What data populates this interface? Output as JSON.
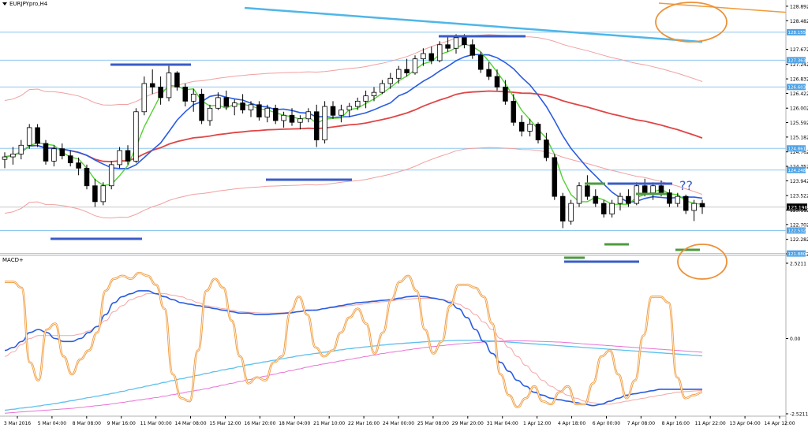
{
  "window": {
    "symbol_title": "EURJPYpro,H4"
  },
  "macd": {
    "label": "MACD+"
  },
  "annotation": {
    "question_text": "??"
  },
  "colors": {
    "background": "#ffffff",
    "up_candle": "#ffffff",
    "down_candle": "#000000",
    "ma_fast": "#55d035",
    "ma_mid": "#2a5ce0",
    "ma_slow": "#e04545",
    "envelope": "#f0a0a0",
    "channel_line": "#4fb6e8",
    "orange_line": "#f09a3a",
    "hline": "#8fc8ee",
    "marker_blue": "#3a5cc9",
    "marker_green": "#4f9a3f",
    "circle": "#ec9137",
    "macd_orange": "#f09a3a",
    "macd_blue": "#2a5ce0",
    "macd_red": "#f3a6a6",
    "macd_cyan": "#5ec0ee",
    "macd_magenta": "#e872d6",
    "price_label_bg": "#4fa3e6",
    "current_price_bg": "#000000"
  },
  "chart_data": [
    {
      "type": "candlestick",
      "title": "EURJPYpro,H4",
      "ylim": [
        121.872,
        128.89
      ],
      "y_ticks": [
        "128.892",
        "128.482",
        "127.672",
        "127.242",
        "126.832",
        "126.422",
        "126.002",
        "125.592",
        "125.182",
        "124.762",
        "124.352",
        "123.942",
        "123.522",
        "123.112",
        "122.702",
        "122.282",
        "121.872"
      ],
      "x_ticks": [
        "3 Mar 2016",
        "5 Mar 04:00",
        "8 Mar 08:00",
        "9 Mar 16:00",
        "11 Mar 00:00",
        "14 Mar 08:00",
        "15 Mar 12:00",
        "16 Mar 20:00",
        "18 Mar 04:00",
        "21 Mar 10:00",
        "22 Mar 16:00",
        "24 Mar 00:00",
        "25 Mar 08:00",
        "29 Mar 20:00",
        "31 Mar 04:00",
        "1 Apr 12:00",
        "4 Apr 18:00",
        "6 Apr 00:00",
        "7 Apr 08:00",
        "8 Apr 16:00",
        "11 Apr 22:00",
        "13 Apr 04:00",
        "14 Apr 12:00"
      ],
      "current_price": "123.196",
      "horizontal_level_labels": [
        "128.155",
        "127.363",
        "126.603",
        "124.861",
        "124.248",
        "122.532",
        "121.880"
      ],
      "horizontal_levels": [
        128.155,
        127.363,
        126.603,
        124.861,
        124.248,
        122.532,
        121.88
      ],
      "candles": [
        [
          124.55,
          124.75,
          124.3,
          124.62
        ],
        [
          124.62,
          124.9,
          124.4,
          124.7
        ],
        [
          124.7,
          125.1,
          124.55,
          124.95
        ],
        [
          124.95,
          125.55,
          124.85,
          125.45
        ],
        [
          125.45,
          125.55,
          124.9,
          125.0
        ],
        [
          125.0,
          125.1,
          124.4,
          124.5
        ],
        [
          124.5,
          124.95,
          124.35,
          124.85
        ],
        [
          124.85,
          125.0,
          124.55,
          124.65
        ],
        [
          124.65,
          124.8,
          124.35,
          124.45
        ],
        [
          124.45,
          124.6,
          124.1,
          124.3
        ],
        [
          124.3,
          124.4,
          123.7,
          123.8
        ],
        [
          123.8,
          124.0,
          123.2,
          123.35
        ],
        [
          123.35,
          123.9,
          123.25,
          123.8
        ],
        [
          123.8,
          124.5,
          123.7,
          124.4
        ],
        [
          124.4,
          124.9,
          124.3,
          124.8
        ],
        [
          124.8,
          124.95,
          124.4,
          124.5
        ],
        [
          124.5,
          126.0,
          124.45,
          125.9
        ],
        [
          125.9,
          126.9,
          125.8,
          126.7
        ],
        [
          126.7,
          127.1,
          126.4,
          126.6
        ],
        [
          126.6,
          126.9,
          126.1,
          126.3
        ],
        [
          126.3,
          127.2,
          126.2,
          127.0
        ],
        [
          127.0,
          127.05,
          126.5,
          126.6
        ],
        [
          126.6,
          126.7,
          126.05,
          126.2
        ],
        [
          126.2,
          126.55,
          125.9,
          126.4
        ],
        [
          126.4,
          126.55,
          125.55,
          125.65
        ],
        [
          125.65,
          126.1,
          125.5,
          126.0
        ],
        [
          126.0,
          126.45,
          125.95,
          126.3
        ],
        [
          126.3,
          126.5,
          125.95,
          126.05
        ],
        [
          126.05,
          126.25,
          125.8,
          126.15
        ],
        [
          126.15,
          126.4,
          125.85,
          125.95
        ],
        [
          125.95,
          126.2,
          125.75,
          126.1
        ],
        [
          126.1,
          126.2,
          125.65,
          125.75
        ],
        [
          125.75,
          126.1,
          125.6,
          126.0
        ],
        [
          126.0,
          126.1,
          125.55,
          125.65
        ],
        [
          125.65,
          125.9,
          125.45,
          125.8
        ],
        [
          125.8,
          126.0,
          125.5,
          125.6
        ],
        [
          125.6,
          125.8,
          125.4,
          125.7
        ],
        [
          125.7,
          126.0,
          125.6,
          125.9
        ],
        [
          125.9,
          126.1,
          124.9,
          125.1
        ],
        [
          125.1,
          126.2,
          125.0,
          126.05
        ],
        [
          126.05,
          126.2,
          125.7,
          125.8
        ],
        [
          125.8,
          126.1,
          125.6,
          125.95
        ],
        [
          125.95,
          126.15,
          125.75,
          126.05
        ],
        [
          126.05,
          126.3,
          125.95,
          126.2
        ],
        [
          126.2,
          126.5,
          126.0,
          126.35
        ],
        [
          126.35,
          126.6,
          126.2,
          126.45
        ],
        [
          126.45,
          126.8,
          126.4,
          126.7
        ],
        [
          126.7,
          127.0,
          126.55,
          126.85
        ],
        [
          126.85,
          127.2,
          126.7,
          127.1
        ],
        [
          127.1,
          127.4,
          126.9,
          127.0
        ],
        [
          127.0,
          127.5,
          126.95,
          127.4
        ],
        [
          127.4,
          127.7,
          127.2,
          127.55
        ],
        [
          127.55,
          127.75,
          127.25,
          127.35
        ],
        [
          127.35,
          127.9,
          127.3,
          127.8
        ],
        [
          127.8,
          128.05,
          127.6,
          127.7
        ],
        [
          127.7,
          128.1,
          127.55,
          128.0
        ],
        [
          128.0,
          128.1,
          127.7,
          127.8
        ],
        [
          127.8,
          127.95,
          127.4,
          127.5
        ],
        [
          127.5,
          127.6,
          127.0,
          127.1
        ],
        [
          127.1,
          127.3,
          126.8,
          126.9
        ],
        [
          126.9,
          127.1,
          126.5,
          126.6
        ],
        [
          126.6,
          126.8,
          126.1,
          126.2
        ],
        [
          126.2,
          126.4,
          125.5,
          125.6
        ],
        [
          125.6,
          125.8,
          125.2,
          125.35
        ],
        [
          125.35,
          125.7,
          125.2,
          125.55
        ],
        [
          125.55,
          125.6,
          125.0,
          125.1
        ],
        [
          125.1,
          125.3,
          124.5,
          124.6
        ],
        [
          124.6,
          124.7,
          123.4,
          123.5
        ],
        [
          123.5,
          123.6,
          122.6,
          122.8
        ],
        [
          122.8,
          123.4,
          122.7,
          123.3
        ],
        [
          123.3,
          123.9,
          123.2,
          123.8
        ],
        [
          123.8,
          124.1,
          123.4,
          123.5
        ],
        [
          123.5,
          123.7,
          123.2,
          123.3
        ],
        [
          123.3,
          123.4,
          122.9,
          123.0
        ],
        [
          123.0,
          123.4,
          122.9,
          123.3
        ],
        [
          123.3,
          123.6,
          123.1,
          123.5
        ],
        [
          123.5,
          123.7,
          123.2,
          123.3
        ],
        [
          123.3,
          123.9,
          123.25,
          123.8
        ],
        [
          123.8,
          124.0,
          123.5,
          123.6
        ],
        [
          123.6,
          123.9,
          123.4,
          123.8
        ],
        [
          123.8,
          123.95,
          123.5,
          123.6
        ],
        [
          123.6,
          123.7,
          123.2,
          123.3
        ],
        [
          123.3,
          123.6,
          123.2,
          123.5
        ],
        [
          123.5,
          123.55,
          123.0,
          123.1
        ],
        [
          123.1,
          123.4,
          122.8,
          123.3
        ],
        [
          123.3,
          123.4,
          123.0,
          123.2
        ]
      ]
    },
    {
      "type": "line",
      "title": "MACD+",
      "ylim": [
        -2.5211,
        2.5211
      ],
      "y_ticks": [
        "2.5211",
        "0.00",
        "-2.5211"
      ],
      "series": [
        {
          "values": [
            1.9,
            1.9,
            1.7,
            -0.8,
            -1.4,
            0.3,
            0.5,
            -0.6,
            -1.2,
            -0.7,
            -0.4,
            0.2,
            1.6,
            2.0,
            2.1,
            2.0,
            2.2,
            2.1,
            1.8,
            1.0,
            -1.2,
            -2.0,
            -2.1,
            -0.4,
            1.6,
            2.0,
            1.7,
            0.6,
            -0.6,
            -1.5,
            -1.3,
            -1.4,
            -0.8,
            -0.6,
            0.9,
            1.4,
            0.8,
            -0.3,
            -0.6,
            -0.4,
            0.2,
            0.7,
            1.0,
            0.5,
            -0.5,
            0.2,
            1.3,
            1.9,
            2.1,
            1.6,
            0.3,
            -0.5,
            -0.1,
            1.1,
            1.8,
            1.8,
            1.7,
            1.4,
            0.5,
            -1.2,
            -1.9,
            -2.3,
            -2.0,
            -1.6,
            -2.1,
            -2.2,
            -1.8,
            -1.6,
            -2.2,
            -2.2,
            -1.5,
            -0.6,
            -0.4,
            -1.2,
            -2.0,
            -1.4,
            0.1,
            1.4,
            1.4,
            1.2,
            -1.3,
            -2.0,
            -1.9,
            -1.8
          ]
        },
        {
          "values": [
            -0.4,
            -0.3,
            -0.1,
            0.2,
            0.3,
            0.2,
            0.0,
            -0.1,
            -0.1,
            0.0,
            0.2,
            0.4,
            0.8,
            1.2,
            1.4,
            1.5,
            1.6,
            1.6,
            1.5,
            1.4,
            1.3,
            1.2,
            1.15,
            1.1,
            1.05,
            1.0,
            0.95,
            0.9,
            0.85,
            0.85,
            0.8,
            0.8,
            0.82,
            0.84,
            0.86,
            0.9,
            0.95,
            0.95,
            1.0,
            1.05,
            1.1,
            1.15,
            1.2,
            1.22,
            1.25,
            1.28,
            1.3,
            1.35,
            1.4,
            1.42,
            1.4,
            1.35,
            1.3,
            1.2,
            1.0,
            0.7,
            0.3,
            -0.1,
            -0.5,
            -0.8,
            -1.1,
            -1.4,
            -1.6,
            -1.8,
            -1.9,
            -2.0,
            -2.05,
            -2.1,
            -2.15,
            -2.2,
            -2.25,
            -2.2,
            -2.1,
            -2.0,
            -1.9,
            -1.85,
            -1.8,
            -1.75,
            -1.7,
            -1.7,
            -1.7,
            -1.7,
            -1.7,
            -1.7
          ]
        },
        {
          "values": [
            -0.6,
            -0.45,
            -0.2,
            0.0,
            0.1,
            0.1,
            0.1,
            0.1,
            0.1,
            0.15,
            0.25,
            0.4,
            0.6,
            0.9,
            1.1,
            1.3,
            1.4,
            1.5,
            1.5,
            1.5,
            1.45,
            1.4,
            1.3,
            1.2,
            1.1,
            1.05,
            1.0,
            0.95,
            0.9,
            0.88,
            0.86,
            0.85,
            0.85,
            0.86,
            0.88,
            0.9,
            0.93,
            0.96,
            1.0,
            1.03,
            1.06,
            1.1,
            1.13,
            1.16,
            1.2,
            1.23,
            1.26,
            1.3,
            1.32,
            1.34,
            1.35,
            1.34,
            1.3,
            1.25,
            1.15,
            1.0,
            0.8,
            0.55,
            0.3,
            0.0,
            -0.3,
            -0.6,
            -0.9,
            -1.15,
            -1.4,
            -1.6,
            -1.75,
            -1.9,
            -2.0,
            -2.1,
            -2.15,
            -2.2,
            -2.2,
            -2.15,
            -2.1,
            -2.05,
            -2.0,
            -1.95,
            -1.9,
            -1.85,
            -1.8,
            -1.78,
            -1.76,
            -1.74
          ]
        },
        {
          "values": [
            -2.4,
            -2.37,
            -2.33,
            -2.3,
            -2.26,
            -2.22,
            -2.18,
            -2.13,
            -2.08,
            -2.03,
            -1.98,
            -1.93,
            -1.88,
            -1.83,
            -1.77,
            -1.71,
            -1.65,
            -1.59,
            -1.53,
            -1.47,
            -1.41,
            -1.35,
            -1.29,
            -1.23,
            -1.17,
            -1.11,
            -1.05,
            -1.0,
            -0.94,
            -0.88,
            -0.83,
            -0.78,
            -0.73,
            -0.68,
            -0.63,
            -0.58,
            -0.54,
            -0.5,
            -0.46,
            -0.42,
            -0.38,
            -0.34,
            -0.31,
            -0.28,
            -0.25,
            -0.22,
            -0.19,
            -0.17,
            -0.15,
            -0.13,
            -0.11,
            -0.09,
            -0.08,
            -0.07,
            -0.06,
            -0.06,
            -0.06,
            -0.07,
            -0.08,
            -0.1,
            -0.12,
            -0.14,
            -0.16,
            -0.18,
            -0.2,
            -0.22,
            -0.24,
            -0.26,
            -0.28,
            -0.3,
            -0.32,
            -0.34,
            -0.36,
            -0.38,
            -0.4,
            -0.42,
            -0.44,
            -0.46,
            -0.48,
            -0.5,
            -0.52,
            -0.54,
            -0.56,
            -0.58
          ]
        },
        {
          "values": [
            -2.5,
            -2.48,
            -2.46,
            -2.44,
            -2.42,
            -2.4,
            -2.38,
            -2.36,
            -2.34,
            -2.31,
            -2.28,
            -2.25,
            -2.22,
            -2.18,
            -2.14,
            -2.1,
            -2.06,
            -2.02,
            -1.98,
            -1.93,
            -1.88,
            -1.83,
            -1.78,
            -1.73,
            -1.68,
            -1.62,
            -1.56,
            -1.5,
            -1.44,
            -1.38,
            -1.32,
            -1.26,
            -1.2,
            -1.14,
            -1.08,
            -1.02,
            -0.96,
            -0.9,
            -0.85,
            -0.8,
            -0.75,
            -0.7,
            -0.65,
            -0.6,
            -0.55,
            -0.5,
            -0.46,
            -0.42,
            -0.38,
            -0.34,
            -0.3,
            -0.27,
            -0.24,
            -0.21,
            -0.18,
            -0.16,
            -0.14,
            -0.12,
            -0.1,
            -0.09,
            -0.08,
            -0.08,
            -0.08,
            -0.09,
            -0.1,
            -0.11,
            -0.12,
            -0.14,
            -0.16,
            -0.18,
            -0.2,
            -0.22,
            -0.24,
            -0.26,
            -0.28,
            -0.3,
            -0.32,
            -0.34,
            -0.36,
            -0.38,
            -0.4,
            -0.42,
            -0.44,
            -0.46
          ]
        }
      ]
    }
  ]
}
